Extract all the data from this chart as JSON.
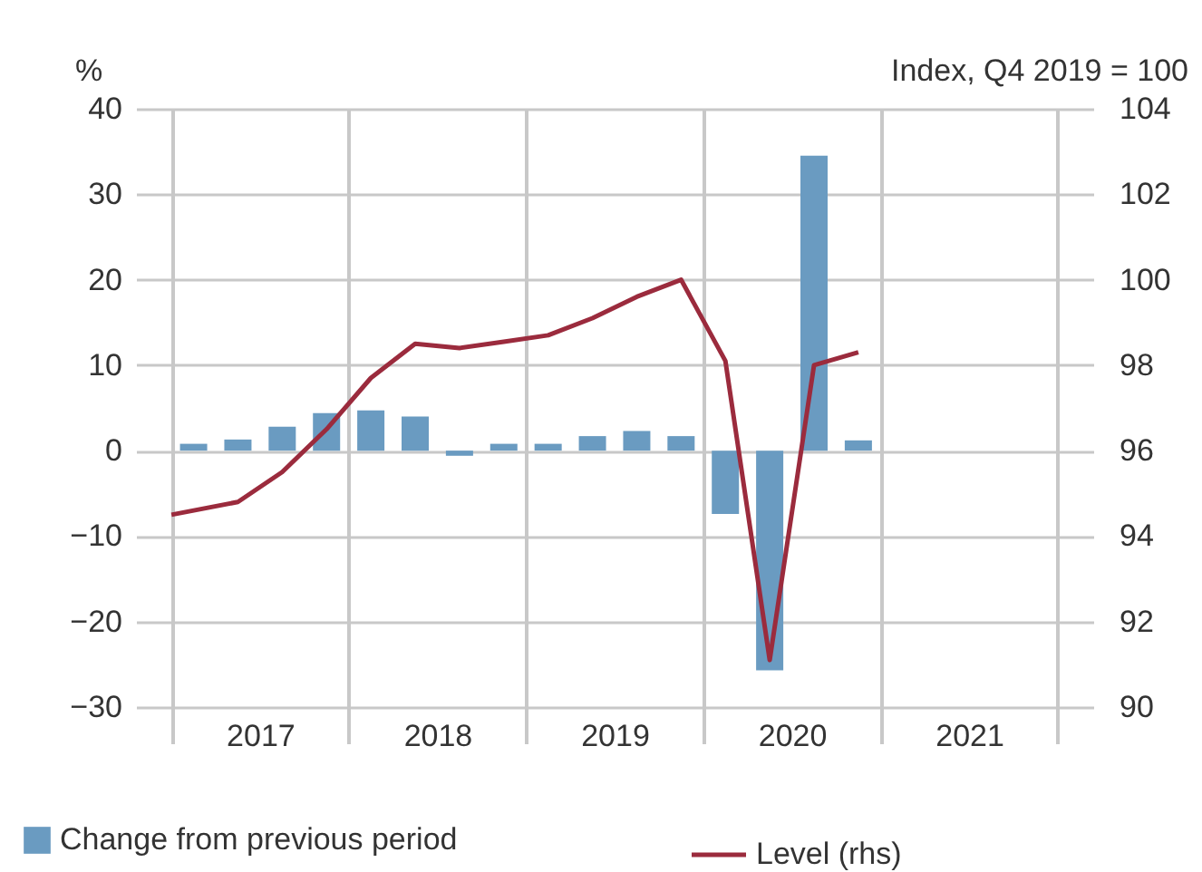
{
  "chart_data": {
    "type": "bar",
    "ylabel": "%",
    "y2label": "Index, Q4 2019 = 100",
    "xlim": [
      2016.3,
      2021.7
    ],
    "xticks": [
      {
        "value": 2016.5,
        "label": null
      },
      2017,
      {
        "value": 2017.5,
        "label": null
      },
      2018,
      {
        "value": 2018.5,
        "label": null
      },
      2019,
      {
        "value": 2019.5,
        "label": null
      },
      2020,
      {
        "value": 2020.5,
        "label": null
      },
      2021,
      {
        "value": 2021.5,
        "label": null
      }
    ],
    "ylim": [
      -30,
      40
    ],
    "yticks": [
      -30,
      -20,
      -10,
      0,
      10,
      20,
      30,
      40
    ],
    "y2lim": [
      90,
      104
    ],
    "y2ticks": [
      90,
      92,
      94,
      96,
      98,
      100,
      102,
      104
    ],
    "grid": true,
    "legend": "bottom",
    "series": [
      {
        "name": "Change from previous period",
        "type": "bar",
        "color": "#6a9bc1",
        "x": [
          2016.625,
          2016.875,
          2017.125,
          2017.375,
          2017.625,
          2017.875,
          2018.125,
          2018.375,
          2018.625,
          2018.875,
          2019.125,
          2019.375,
          2019.625,
          2019.875,
          2020.125,
          2020.375
        ],
        "values": [
          0.8,
          1.3,
          2.8,
          4.4,
          4.7,
          4.0,
          -0.6,
          0.8,
          0.8,
          1.7,
          2.3,
          1.7,
          -7.4,
          -25.7,
          34.5,
          1.2
        ]
      },
      {
        "name": "Level (rhs)",
        "type": "line",
        "axis": "y2",
        "color": "#9b2b3d",
        "x": [
          2016.5,
          2016.875,
          2017.125,
          2017.375,
          2017.625,
          2017.875,
          2018.125,
          2018.375,
          2018.625,
          2018.875,
          2019.125,
          2019.375,
          2019.625,
          2019.875,
          2020.125,
          2020.375
        ],
        "values": [
          94.5,
          94.8,
          95.5,
          96.5,
          97.7,
          98.5,
          98.4,
          98.55,
          98.7,
          99.1,
          99.6,
          100,
          98.1,
          91.1,
          98.0,
          98.3
        ]
      }
    ]
  }
}
